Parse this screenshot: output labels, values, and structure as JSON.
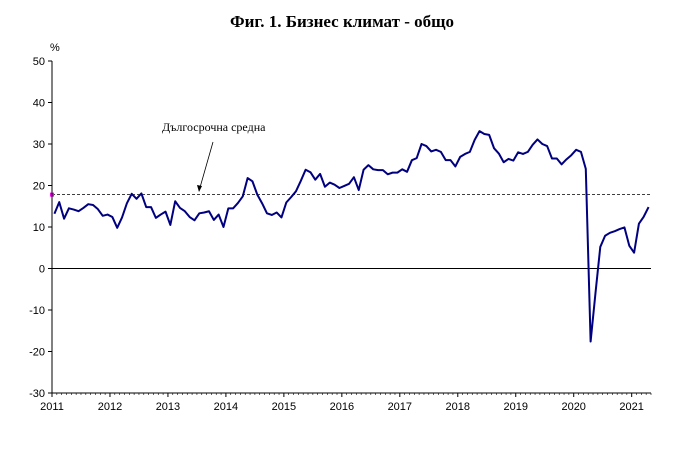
{
  "chart_data": {
    "type": "line",
    "title": "Фиг. 1. Бизнес климат - общо",
    "ylabel": "%",
    "xlabel": "",
    "ylim": [
      -30,
      50
    ],
    "y_ticks": [
      "50",
      "40",
      "30",
      "20",
      "10",
      "0",
      "-10",
      "-20",
      "-30"
    ],
    "x_ticks": [
      "2011",
      "2012",
      "2013",
      "2014",
      "2015",
      "2016",
      "2017",
      "2018",
      "2019",
      "2020",
      "2021"
    ],
    "reference_line": {
      "label": "Дългосрочна средна",
      "value": 17.8
    },
    "colors": {
      "series": "#000080",
      "reference": "#000000",
      "marker": "#ff00ff"
    },
    "series": [
      {
        "values": [
          13.2,
          16.0,
          12.0,
          14.5,
          14.2,
          13.8,
          14.6,
          15.5,
          15.3,
          14.3,
          12.7,
          13.0,
          12.4,
          9.8,
          12.3,
          15.7,
          18.0,
          16.8,
          18.1,
          14.8,
          14.8,
          12.2,
          13.0,
          13.7,
          10.5,
          16.2,
          14.6,
          13.8,
          12.4,
          11.6,
          13.3,
          13.5,
          13.8,
          11.7,
          13.0,
          10.0,
          14.5,
          14.5,
          15.8,
          17.4,
          21.8,
          21.0,
          17.8,
          15.7,
          13.3,
          12.9,
          13.5,
          12.3,
          15.9,
          17.2,
          18.6,
          21.1,
          23.8,
          23.2,
          21.4,
          22.8,
          19.7,
          20.7,
          20.2,
          19.4,
          19.9,
          20.4,
          22.0,
          18.9,
          23.8,
          24.9,
          23.9,
          23.7,
          23.7,
          22.7,
          23.1,
          23.1,
          23.9,
          23.3,
          26.1,
          26.6,
          30.0,
          29.5,
          28.2,
          28.6,
          28.1,
          26.1,
          26.1,
          24.6,
          26.9,
          27.6,
          28.1,
          31.0,
          33.1,
          32.4,
          32.2,
          29.0,
          27.7,
          25.6,
          26.4,
          26.0,
          28.0,
          27.6,
          28.1,
          29.8,
          31.1,
          30.0,
          29.5,
          26.5,
          26.5,
          25.1,
          26.3,
          27.3,
          28.6,
          28.1,
          24.0,
          -17.6,
          -6.0,
          5.2,
          7.9,
          8.6,
          9.0,
          9.5,
          9.9,
          5.5,
          3.8,
          10.8,
          12.5,
          14.8
        ]
      }
    ]
  }
}
